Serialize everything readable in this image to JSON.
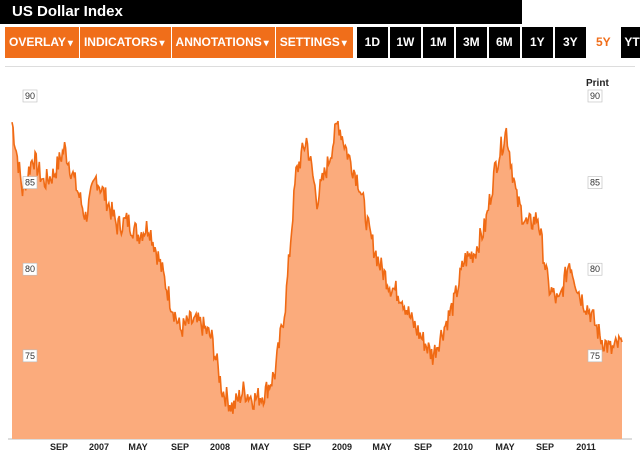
{
  "title": "US Dollar Index",
  "toolbar": {
    "menus": [
      {
        "label": "OVERLAY",
        "arrow": "▾"
      },
      {
        "label": "INDICATORS",
        "arrow": "▾"
      },
      {
        "label": "ANNOTATIONS",
        "arrow": "▾"
      },
      {
        "label": "SETTINGS",
        "arrow": "▾"
      }
    ],
    "ranges": [
      "1D",
      "1W",
      "1M",
      "3M",
      "6M",
      "1Y",
      "3Y",
      "5Y",
      "YTD"
    ],
    "active_range": "5Y"
  },
  "print_label": "Print",
  "colors": {
    "accent": "#f06e1a",
    "line": "#f06a14",
    "fill": "#fbab7c"
  },
  "chart_data": {
    "type": "area",
    "title": "US Dollar Index",
    "xlabel": "",
    "ylabel": "",
    "ylim": [
      70.2,
      91.5
    ],
    "y_ticks": [
      75,
      80,
      85,
      90
    ],
    "x_tick_labels": [
      "SEP",
      "2007",
      "MAY",
      "SEP",
      "2008",
      "MAY",
      "SEP",
      "2009",
      "MAY",
      "SEP",
      "2010",
      "MAY",
      "SEP",
      "2011"
    ],
    "grid": false,
    "legend": "none",
    "x": [
      "2006-07",
      "2006-08",
      "2006-09",
      "2006-10",
      "2006-11",
      "2006-12",
      "2007-01",
      "2007-02",
      "2007-03",
      "2007-04",
      "2007-05",
      "2007-06",
      "2007-07",
      "2007-08",
      "2007-09",
      "2007-10",
      "2007-11",
      "2007-12",
      "2008-01",
      "2008-02",
      "2008-03",
      "2008-04",
      "2008-05",
      "2008-06",
      "2008-07",
      "2008-08",
      "2008-09",
      "2008-10",
      "2008-11",
      "2008-12",
      "2009-01",
      "2009-02",
      "2009-03",
      "2009-04",
      "2009-05",
      "2009-06",
      "2009-07",
      "2009-08",
      "2009-09",
      "2009-10",
      "2009-11",
      "2009-12",
      "2010-01",
      "2010-02",
      "2010-03",
      "2010-04",
      "2010-05",
      "2010-06",
      "2010-07",
      "2010-08",
      "2010-09",
      "2010-10",
      "2010-11",
      "2010-12",
      "2011-01",
      "2011-02",
      "2011-03",
      "2011-04",
      "2011-05"
    ],
    "values": [
      88.5,
      84.5,
      86.5,
      85.0,
      85.5,
      87.0,
      85.0,
      83.0,
      85.3,
      84.0,
      82.5,
      82.8,
      82.0,
      82.5,
      80.5,
      78.3,
      76.5,
      77.0,
      76.8,
      76.0,
      73.0,
      72.0,
      73.0,
      72.5,
      72.8,
      74.0,
      78.0,
      85.5,
      87.5,
      84.0,
      86.0,
      88.5,
      86.5,
      85.0,
      82.0,
      80.2,
      79.0,
      78.5,
      77.0,
      76.0,
      75.0,
      76.5,
      78.0,
      80.5,
      81.0,
      82.5,
      86.0,
      88.0,
      84.0,
      82.5,
      83.0,
      79.0,
      78.0,
      80.5,
      78.5,
      77.5,
      76.0,
      75.3,
      75.8
    ]
  }
}
